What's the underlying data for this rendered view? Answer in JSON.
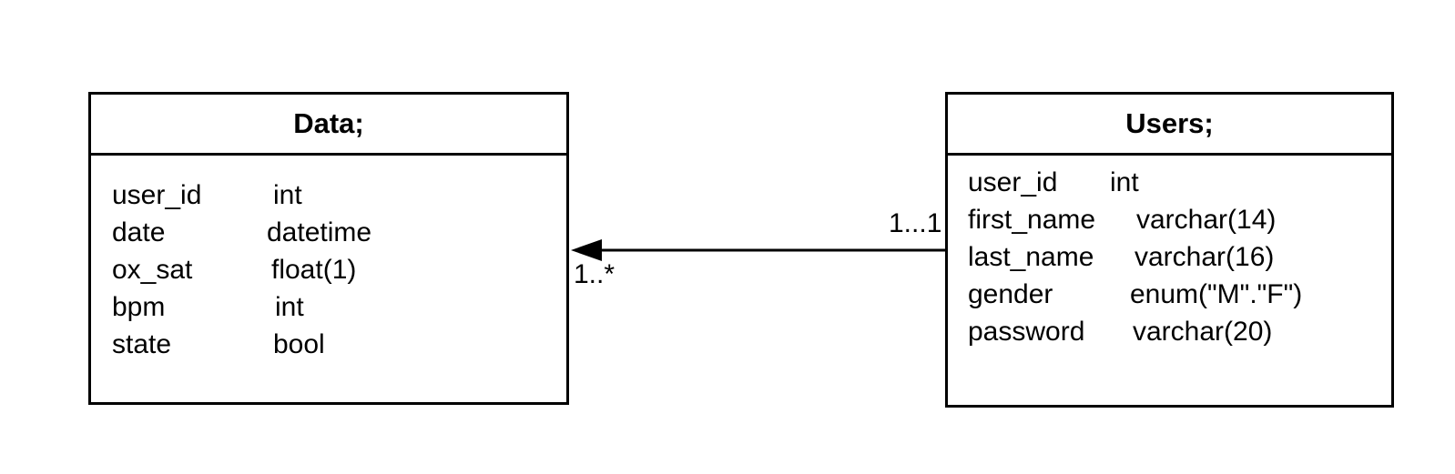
{
  "entities": {
    "data": {
      "title": "Data;",
      "fields": [
        {
          "name": "user_id",
          "type": "int"
        },
        {
          "name": "date",
          "type": "datetime"
        },
        {
          "name": "ox_sat",
          "type": "float(1)"
        },
        {
          "name": "bpm",
          "type": "int"
        },
        {
          "name": "state",
          "type": "bool"
        }
      ]
    },
    "users": {
      "title": "Users;",
      "fields": [
        {
          "name": "user_id",
          "type": "int"
        },
        {
          "name": "first_name",
          "type": "varchar(14)"
        },
        {
          "name": "last_name",
          "type": "varchar(16)"
        },
        {
          "name": "gender",
          "type": "enum(\"M\".\"F\")"
        },
        {
          "name": "password",
          "type": "varchar(20)"
        }
      ]
    }
  },
  "relationship": {
    "source_multiplicity": "1...1",
    "target_multiplicity": "1..*"
  }
}
